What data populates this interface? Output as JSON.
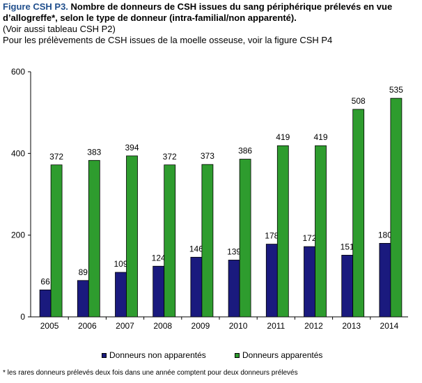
{
  "header": {
    "figure_label": "Figure CSH P3.",
    "title": "Nombre de donneurs de CSH issues du sang périphérique prélevés en vue d’allogreffe*, selon le type de donneur (intra-familial/non apparenté).",
    "line2": "(Voir aussi tableau CSH P2)",
    "line3": "Pour les prélèvements de CSH issues de la moelle osseuse, voir la figure CSH P4"
  },
  "chart_data": {
    "type": "bar",
    "title": "",
    "xlabel": "",
    "ylabel": "",
    "ylim": [
      0,
      600
    ],
    "yticks": [
      0,
      200,
      400,
      600
    ],
    "grid": false,
    "legend_position": "bottom",
    "categories": [
      "2005",
      "2006",
      "2007",
      "2008",
      "2009",
      "2010",
      "2011",
      "2012",
      "2013",
      "2014"
    ],
    "series": [
      {
        "name": "Donneurs non apparentés",
        "color": "#1a1a7e",
        "values": [
          66,
          89,
          109,
          124,
          146,
          139,
          178,
          172,
          151,
          180
        ]
      },
      {
        "name": "Donneurs apparentés",
        "color": "#2e9c2e",
        "values": [
          372,
          383,
          394,
          372,
          373,
          386,
          419,
          419,
          508,
          535
        ]
      }
    ]
  },
  "footnote": "* les rares donneurs prélevés deux fois dans une année comptent pour deux donneurs prélevés"
}
